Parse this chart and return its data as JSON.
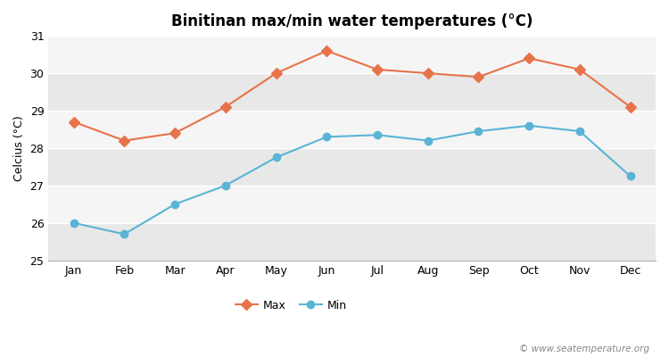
{
  "title": "Binitinan max/min water temperatures (°C)",
  "ylabel": "Celcius (°C)",
  "months": [
    "Jan",
    "Feb",
    "Mar",
    "Apr",
    "May",
    "Jun",
    "Jul",
    "Aug",
    "Sep",
    "Oct",
    "Nov",
    "Dec"
  ],
  "max_temps": [
    28.7,
    28.2,
    28.4,
    29.1,
    30.0,
    30.6,
    30.1,
    30.0,
    29.9,
    30.4,
    30.1,
    29.1
  ],
  "min_temps": [
    26.0,
    25.7,
    26.5,
    27.0,
    27.75,
    28.3,
    28.35,
    28.2,
    28.45,
    28.6,
    28.45,
    27.25
  ],
  "max_color": "#e8734a",
  "min_color": "#5ab4d6",
  "ylim": [
    25,
    31
  ],
  "yticks": [
    25,
    26,
    27,
    28,
    29,
    30,
    31
  ],
  "fig_bg_color": "#ffffff",
  "band_colors": [
    "#e8e8e8",
    "#f5f5f5"
  ],
  "grid_color": "#ffffff",
  "watermark": "© www.seatemperature.org",
  "legend_max": "Max",
  "legend_min": "Min",
  "spine_color": "#bbbbbb"
}
